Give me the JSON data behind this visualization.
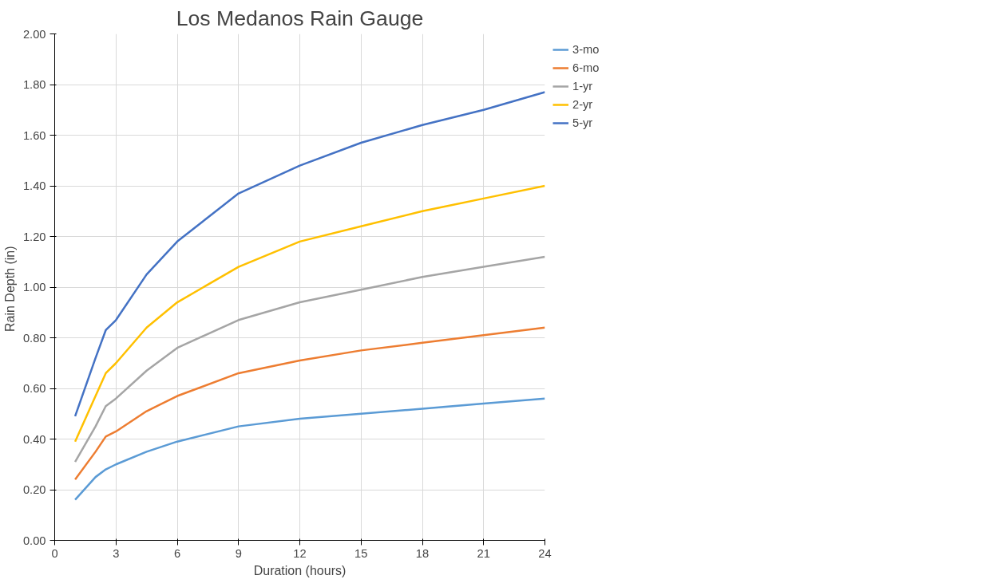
{
  "chart_data": {
    "type": "line",
    "title": "Los Medanos Rain Gauge",
    "xlabel": "Duration (hours)",
    "ylabel": "Rain Depth  (in)",
    "x": [
      1,
      2,
      2.5,
      3,
      4.5,
      6,
      9,
      12,
      15,
      18,
      21,
      24
    ],
    "xlim": [
      0,
      24
    ],
    "xticks": [
      0,
      3,
      6,
      9,
      12,
      15,
      18,
      21,
      24
    ],
    "ylim": [
      0,
      2
    ],
    "yticks": [
      {
        "value": 0,
        "label": "0.00"
      },
      {
        "value": 0.2,
        "label": "0.20"
      },
      {
        "value": 0.4,
        "label": "0.40"
      },
      {
        "value": 0.6,
        "label": "0.60"
      },
      {
        "value": 0.8,
        "label": "0.80"
      },
      {
        "value": 1.0,
        "label": "1.00"
      },
      {
        "value": 1.2,
        "label": "1.20"
      },
      {
        "value": 1.4,
        "label": "1.40"
      },
      {
        "value": 1.6,
        "label": "1.60"
      },
      {
        "value": 1.8,
        "label": "1.80"
      },
      {
        "value": 2.0,
        "label": "2.00"
      }
    ],
    "grid": true,
    "legend": "right",
    "line_style": "solid",
    "series": [
      {
        "name": "3-mo",
        "color": "#5b9bd5",
        "values": [
          0.16,
          0.25,
          0.28,
          0.3,
          0.35,
          0.39,
          0.45,
          0.48,
          0.5,
          0.52,
          0.54,
          0.56
        ]
      },
      {
        "name": "6-mo",
        "color": "#ed7d31",
        "values": [
          0.24,
          0.35,
          0.41,
          0.43,
          0.51,
          0.57,
          0.66,
          0.71,
          0.75,
          0.78,
          0.81,
          0.84
        ]
      },
      {
        "name": "1-yr",
        "color": "#a5a5a5",
        "values": [
          0.31,
          0.45,
          0.53,
          0.56,
          0.67,
          0.76,
          0.87,
          0.94,
          0.99,
          1.04,
          1.08,
          1.12
        ]
      },
      {
        "name": "2-yr",
        "color": "#ffc000",
        "values": [
          0.39,
          0.57,
          0.66,
          0.7,
          0.84,
          0.94,
          1.08,
          1.18,
          1.24,
          1.3,
          1.35,
          1.4
        ]
      },
      {
        "name": "5-yr",
        "color": "#4472c4",
        "values": [
          0.49,
          0.72,
          0.83,
          0.87,
          1.05,
          1.18,
          1.37,
          1.48,
          1.57,
          1.64,
          1.7,
          1.77
        ]
      }
    ]
  }
}
